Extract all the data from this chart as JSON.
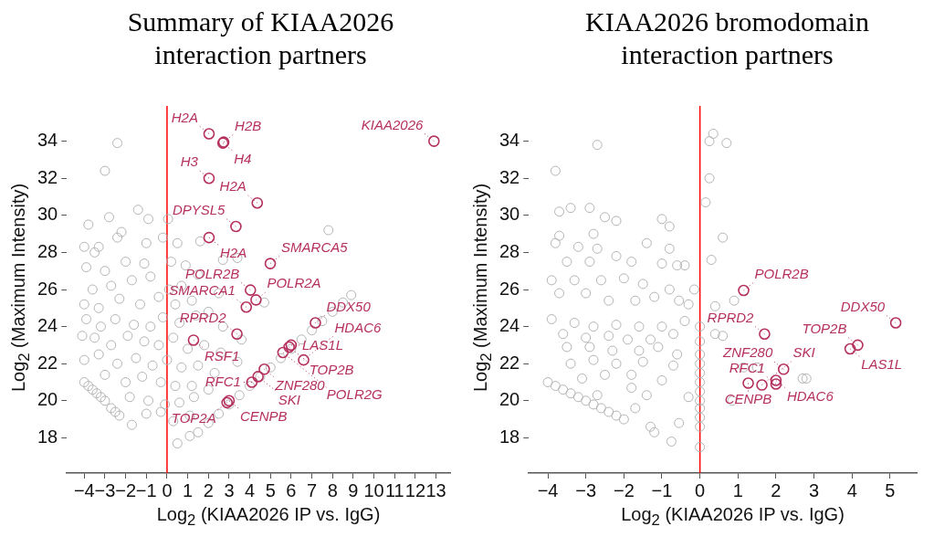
{
  "chart_data": [
    {
      "type": "scatter",
      "title": "Summary of KIAA2026 interaction partners",
      "xlabel": "Log$_{2}$ (KIAA2026 IP vs. IgG)",
      "ylabel": "Log$_{2}$ (Maximum Intensity)",
      "xlim": [
        -4.84,
        13.68
      ],
      "ylim": [
        16.1,
        35.9
      ],
      "xticks": [
        -4,
        -3,
        -2,
        -1,
        0,
        1,
        2,
        3,
        4,
        5,
        6,
        7,
        8,
        9,
        10,
        11,
        12,
        13
      ],
      "yticks": [
        18,
        20,
        22,
        24,
        26,
        28,
        30,
        32,
        34
      ],
      "grid": false,
      "legend": false,
      "marker": "circle",
      "ref_lines": [
        {
          "axis": "x",
          "value": 0,
          "color": "#ff0000"
        }
      ],
      "series": [
        {
          "color": "#b4b4b4",
          "x": [
            -2.4,
            -3.0,
            -3.8,
            -2.8,
            -1.4,
            -0.9,
            0.05,
            -2.2,
            -3.3,
            -4.0,
            -3.5,
            -2.4,
            -1.0,
            -0.2,
            0.5,
            1.6,
            2.7,
            3.4,
            7.8,
            -3.9,
            -3.0,
            -2.0,
            -1.1,
            0.2,
            0.9,
            -3.6,
            -2.7,
            -1.7,
            -0.8,
            0.1,
            0.7,
            1.5,
            2.5,
            -4.0,
            -3.3,
            -2.3,
            -1.3,
            -0.4,
            0.4,
            1.2,
            2.0,
            4.7,
            -3.9,
            -3.2,
            -2.5,
            -1.6,
            -0.8,
            -0.2,
            0.6,
            1.4,
            2.7,
            -4.1,
            -3.5,
            -2.7,
            -1.9,
            -1.1,
            -0.4,
            0.3,
            1.0,
            1.8,
            2.6,
            3.6,
            -4.0,
            -3.3,
            -2.4,
            -1.5,
            -0.7,
            0.0,
            0.7,
            1.5,
            2.3,
            3.4,
            -3.0,
            -2.0,
            -1.2,
            -0.3,
            0.4,
            1.2,
            2.0,
            -1.8,
            -0.9,
            -0.1,
            0.6,
            1.3,
            -1.0,
            -0.3,
            0.3,
            1.1,
            -1.7,
            0.5,
            1.1,
            1.5,
            2.0,
            2.5,
            3.0,
            3.5,
            4.0,
            4.5,
            5.0,
            5.5,
            6.0,
            6.5,
            7.0,
            7.5,
            8.0,
            8.5,
            8.9,
            -4.0,
            -3.8,
            -3.6,
            -3.4,
            -3.2,
            -3.0,
            -2.7,
            -2.5,
            -2.3
          ],
          "values": [
            33.9,
            32.4,
            29.5,
            29.9,
            30.3,
            29.8,
            29.8,
            29.1,
            28.3,
            28.3,
            28.0,
            28.8,
            28.5,
            28.8,
            28.5,
            28.6,
            27.6,
            27.7,
            29.2,
            27.2,
            27.0,
            27.5,
            27.4,
            27.5,
            27.3,
            26.0,
            26.2,
            26.5,
            26.7,
            26.0,
            26.2,
            26.8,
            25.8,
            25.2,
            25.0,
            25.5,
            25.2,
            25.6,
            25.2,
            25.4,
            24.8,
            25.3,
            24.4,
            24.0,
            24.4,
            24.1,
            24.0,
            24.5,
            24.2,
            24.6,
            24.0,
            23.5,
            23.4,
            23.0,
            23.5,
            23.2,
            23.0,
            23.4,
            22.8,
            23.0,
            22.6,
            23.3,
            22.2,
            22.5,
            22.0,
            22.3,
            21.9,
            22.2,
            21.8,
            21.9,
            21.5,
            22.1,
            21.4,
            21.0,
            21.3,
            21.0,
            20.8,
            20.8,
            20.6,
            20.2,
            20.0,
            19.8,
            19.9,
            20.2,
            19.3,
            19.4,
            18.9,
            19.2,
            18.7,
            17.7,
            18.1,
            18.3,
            18.8,
            19.3,
            19.8,
            20.3,
            20.8,
            21.3,
            21.8,
            22.3,
            22.8,
            23.3,
            23.8,
            24.3,
            24.8,
            25.3,
            25.7,
            21.0,
            20.8,
            20.6,
            20.4,
            20.2,
            20.0,
            19.6,
            19.4,
            19.2
          ]
        },
        {
          "color": "#b5305f",
          "x": [
            12.9,
            2.03,
            2.74,
            2.7,
            2.03,
            4.36,
            3.33,
            2.03,
            4.99,
            4.03,
            4.3,
            3.83,
            1.28,
            3.38,
            7.17,
            6.0,
            5.9,
            5.6,
            6.6,
            4.7,
            4.4,
            4.1,
            3.0,
            2.9
          ],
          "values": [
            34.0,
            34.4,
            33.95,
            33.9,
            32.0,
            30.67,
            29.4,
            28.8,
            27.4,
            25.97,
            25.44,
            25.05,
            23.27,
            23.6,
            24.2,
            23.0,
            22.9,
            22.6,
            22.2,
            21.7,
            21.3,
            21.0,
            20.0,
            19.9
          ]
        }
      ],
      "annotations": [
        {
          "text": "KIAA2026",
          "x": 12.9,
          "y": 34.0
        },
        {
          "text": "H2A",
          "x": 2.03,
          "y": 34.4
        },
        {
          "text": "H2B",
          "x": 2.74,
          "y": 33.95
        },
        {
          "text": "H4",
          "x": 2.7,
          "y": 33.9
        },
        {
          "text": "H3",
          "x": 2.03,
          "y": 32.0
        },
        {
          "text": "H2A",
          "x": 4.36,
          "y": 30.67
        },
        {
          "text": "DPYSL5",
          "x": 3.33,
          "y": 29.4
        },
        {
          "text": "H2A",
          "x": 2.03,
          "y": 28.8
        },
        {
          "text": "SMARCA5",
          "x": 4.99,
          "y": 27.4
        },
        {
          "text": "POLR2B",
          "x": 4.03,
          "y": 25.97
        },
        {
          "text": "POLR2A",
          "x": 4.3,
          "y": 25.44
        },
        {
          "text": "SMARCA1",
          "x": 3.83,
          "y": 25.05
        },
        {
          "text": "RSF1",
          "x": 1.28,
          "y": 23.27
        },
        {
          "text": "RPRD2",
          "x": 3.38,
          "y": 23.6
        },
        {
          "text": "DDX50",
          "x": 7.17,
          "y": 24.2
        },
        {
          "text": "LAS1L",
          "x": 6.0,
          "y": 23.0
        },
        {
          "text": "TOP2B",
          "x": 5.9,
          "y": 22.9
        },
        {
          "text": "POLR2G",
          "x": 5.6,
          "y": 22.6
        },
        {
          "text": "HDAC6",
          "x": 6.6,
          "y": 22.2
        },
        {
          "text": "ZNF280",
          "x": 4.7,
          "y": 21.7
        },
        {
          "text": "SKI",
          "x": 4.4,
          "y": 21.3
        },
        {
          "text": "RFC1",
          "x": 4.1,
          "y": 21.0
        },
        {
          "text": "CENPB",
          "x": 3.0,
          "y": 20.0
        },
        {
          "text": "TOP2A",
          "x": 2.9,
          "y": 19.9
        }
      ]
    },
    {
      "type": "scatter",
      "title": "KIAA2026 bromodomain interaction partners",
      "xlabel": "Log$_{2}$ (KIAA2026 IP vs. IgG)",
      "ylabel": "Log$_{2}$ (Maximum Intensity)",
      "xlim": [
        -4.5,
        5.7
      ],
      "ylim": [
        16.1,
        35.9
      ],
      "xticks": [
        -4,
        -3,
        -2,
        -1,
        0,
        1,
        2,
        3,
        4,
        5
      ],
      "yticks": [
        18,
        20,
        22,
        24,
        26,
        28,
        30,
        32,
        34
      ],
      "grid": false,
      "legend": false,
      "marker": "circle",
      "ref_lines": [
        {
          "axis": "x",
          "value": 0,
          "color": "#ff0000"
        }
      ],
      "series": [
        {
          "color": "#b4b4b4",
          "x": [
            -2.7,
            -3.8,
            0.25,
            0.35,
            0.7,
            0.25,
            0.15,
            0.6,
            0.3,
            -3.4,
            -2.9,
            -3.7,
            -2.5,
            -2.2,
            -1.0,
            -0.8,
            -3.7,
            -2.8,
            -3.8,
            -3.2,
            -2.7,
            -1.4,
            -0.8,
            -3.5,
            -2.9,
            -2.2,
            -1.8,
            -1.0,
            -0.6,
            -0.4,
            -3.9,
            -3.3,
            -2.6,
            -2.0,
            -1.5,
            -0.8,
            -0.15,
            -3.7,
            -3.0,
            -2.4,
            -1.7,
            -1.2,
            -0.55,
            -0.3,
            0.4,
            0.9,
            -3.9,
            -3.3,
            -2.8,
            -2.2,
            -1.6,
            -1.0,
            -0.4,
            -3.6,
            -3.0,
            -2.4,
            -1.9,
            -1.3,
            -0.7,
            0.4,
            0.6,
            -3.5,
            -2.9,
            -2.3,
            -1.6,
            -1.1,
            -0.6,
            -3.4,
            -2.8,
            -2.2,
            -1.5,
            -0.7,
            1.15,
            1.5,
            -3.1,
            -2.5,
            -1.8,
            -1.0,
            2.7,
            2.8,
            -2.7,
            -1.8,
            -1.4,
            -0.3,
            0.85,
            -1.7,
            -1.3,
            -1.2,
            -0.55,
            -0.75,
            0,
            0,
            0,
            0,
            0,
            0,
            0,
            0,
            0,
            0,
            0,
            0,
            -4.0,
            -3.8,
            -3.6,
            -3.4,
            -3.2,
            -3.0,
            -2.8,
            -2.6,
            -2.4,
            -2.2,
            -2.0
          ],
          "values": [
            33.8,
            32.4,
            34.0,
            34.4,
            33.9,
            32.0,
            30.7,
            28.8,
            27.6,
            30.4,
            30.4,
            30.2,
            29.9,
            29.7,
            29.8,
            29.4,
            28.9,
            29.0,
            28.5,
            28.3,
            28.2,
            28.5,
            28.2,
            27.5,
            27.5,
            27.8,
            27.5,
            27.4,
            27.3,
            27.3,
            26.5,
            26.5,
            26.5,
            26.6,
            26.3,
            26.0,
            26.0,
            25.8,
            25.8,
            25.4,
            25.4,
            25.6,
            25.4,
            25.2,
            25.1,
            25.4,
            24.4,
            24.2,
            24.0,
            24.1,
            24.0,
            24.0,
            24.3,
            23.6,
            23.4,
            23.5,
            23.3,
            23.3,
            23.6,
            23.6,
            23.5,
            22.9,
            22.9,
            22.7,
            22.7,
            22.9,
            22.5,
            22.0,
            22.2,
            22.0,
            22.1,
            21.9,
            21.8,
            21.8,
            21.2,
            21.4,
            21.4,
            21.1,
            21.2,
            21.2,
            20.3,
            20.7,
            20.3,
            20.2,
            20.0,
            19.6,
            18.6,
            18.3,
            18.8,
            17.8,
            24.0,
            23.2,
            22.5,
            22.0,
            21.5,
            21.0,
            20.5,
            20.0,
            19.6,
            19.1,
            18.6,
            17.5,
            21.0,
            20.8,
            20.6,
            20.4,
            20.2,
            20.0,
            19.8,
            19.6,
            19.4,
            19.2,
            19.0
          ]
        },
        {
          "color": "#b5305f",
          "x": [
            1.15,
            1.7,
            2.2,
            2.0,
            2.0,
            1.27,
            1.63,
            5.15,
            4.15,
            3.95
          ],
          "values": [
            25.95,
            23.6,
            21.7,
            21.1,
            20.9,
            20.95,
            20.85,
            24.2,
            23.0,
            22.8
          ]
        }
      ],
      "annotations": [
        {
          "text": "POLR2B",
          "x": 1.15,
          "y": 25.95
        },
        {
          "text": "RPRD2",
          "x": 1.7,
          "y": 23.6
        },
        {
          "text": "ZNF280",
          "x": 2.2,
          "y": 21.7
        },
        {
          "text": "HDAC6",
          "x": 2.0,
          "y": 21.1
        },
        {
          "text": "RFC1",
          "x": 2.0,
          "y": 20.9
        },
        {
          "text": "CENPB",
          "x": 1.27,
          "y": 20.95
        },
        {
          "text": "SKI",
          "x": 1.63,
          "y": 20.85
        },
        {
          "text": "DDX50",
          "x": 5.15,
          "y": 24.2
        },
        {
          "text": "TOP2B",
          "x": 4.15,
          "y": 23.0
        },
        {
          "text": "LAS1L",
          "x": 3.95,
          "y": 22.8
        }
      ]
    }
  ]
}
